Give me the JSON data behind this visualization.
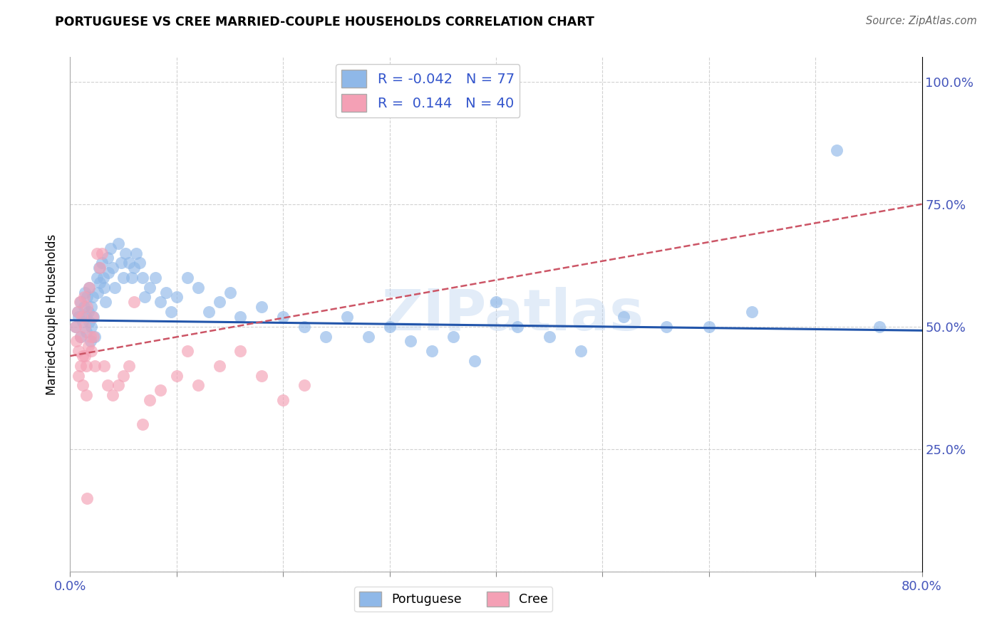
{
  "title": "PORTUGUESE VS CREE MARRIED-COUPLE HOUSEHOLDS CORRELATION CHART",
  "source": "Source: ZipAtlas.com",
  "ylabel": "Married-couple Households",
  "watermark": "ZIPatlas",
  "xlim": [
    0.0,
    0.8
  ],
  "ylim": [
    0.0,
    1.05
  ],
  "portuguese_R": -0.042,
  "portuguese_N": 77,
  "cree_R": 0.144,
  "cree_N": 40,
  "portuguese_color": "#8fb8e8",
  "cree_color": "#f4a0b5",
  "portuguese_line_color": "#2255aa",
  "cree_line_color": "#cc5566",
  "port_x": [
    0.005,
    0.007,
    0.008,
    0.01,
    0.01,
    0.012,
    0.013,
    0.014,
    0.015,
    0.015,
    0.016,
    0.017,
    0.018,
    0.018,
    0.019,
    0.02,
    0.02,
    0.021,
    0.022,
    0.023,
    0.025,
    0.026,
    0.027,
    0.028,
    0.03,
    0.031,
    0.032,
    0.033,
    0.035,
    0.036,
    0.038,
    0.04,
    0.042,
    0.045,
    0.048,
    0.05,
    0.052,
    0.055,
    0.058,
    0.06,
    0.062,
    0.065,
    0.068,
    0.07,
    0.075,
    0.08,
    0.085,
    0.09,
    0.095,
    0.1,
    0.11,
    0.12,
    0.13,
    0.14,
    0.15,
    0.16,
    0.18,
    0.2,
    0.22,
    0.24,
    0.26,
    0.28,
    0.3,
    0.32,
    0.34,
    0.36,
    0.38,
    0.4,
    0.42,
    0.45,
    0.48,
    0.52,
    0.56,
    0.6,
    0.64,
    0.72,
    0.76
  ],
  "port_y": [
    0.5,
    0.53,
    0.52,
    0.55,
    0.48,
    0.51,
    0.54,
    0.57,
    0.52,
    0.49,
    0.56,
    0.53,
    0.58,
    0.51,
    0.47,
    0.54,
    0.5,
    0.56,
    0.52,
    0.48,
    0.6,
    0.57,
    0.62,
    0.59,
    0.63,
    0.6,
    0.58,
    0.55,
    0.64,
    0.61,
    0.66,
    0.62,
    0.58,
    0.67,
    0.63,
    0.6,
    0.65,
    0.63,
    0.6,
    0.62,
    0.65,
    0.63,
    0.6,
    0.56,
    0.58,
    0.6,
    0.55,
    0.57,
    0.53,
    0.56,
    0.6,
    0.58,
    0.53,
    0.55,
    0.57,
    0.52,
    0.54,
    0.52,
    0.5,
    0.48,
    0.52,
    0.48,
    0.5,
    0.47,
    0.45,
    0.48,
    0.43,
    0.55,
    0.5,
    0.48,
    0.45,
    0.52,
    0.5,
    0.5,
    0.53,
    0.86,
    0.5
  ],
  "cree_x": [
    0.005,
    0.006,
    0.007,
    0.008,
    0.009,
    0.01,
    0.011,
    0.012,
    0.013,
    0.014,
    0.015,
    0.016,
    0.017,
    0.018,
    0.019,
    0.02,
    0.021,
    0.022,
    0.023,
    0.025,
    0.028,
    0.03,
    0.032,
    0.035,
    0.04,
    0.045,
    0.05,
    0.055,
    0.06,
    0.068,
    0.075,
    0.085,
    0.1,
    0.11,
    0.12,
    0.14,
    0.16,
    0.18,
    0.2,
    0.22
  ],
  "cree_y": [
    0.5,
    0.47,
    0.53,
    0.45,
    0.55,
    0.48,
    0.52,
    0.44,
    0.56,
    0.5,
    0.42,
    0.54,
    0.46,
    0.58,
    0.48,
    0.45,
    0.52,
    0.48,
    0.42,
    0.65,
    0.62,
    0.65,
    0.42,
    0.38,
    0.36,
    0.38,
    0.4,
    0.42,
    0.55,
    0.3,
    0.35,
    0.37,
    0.4,
    0.45,
    0.38,
    0.42,
    0.45,
    0.4,
    0.35,
    0.38
  ],
  "cree_outliers_x": [
    0.008,
    0.01,
    0.012,
    0.014,
    0.015,
    0.016
  ],
  "cree_outliers_y": [
    0.4,
    0.42,
    0.38,
    0.44,
    0.36,
    0.15
  ]
}
